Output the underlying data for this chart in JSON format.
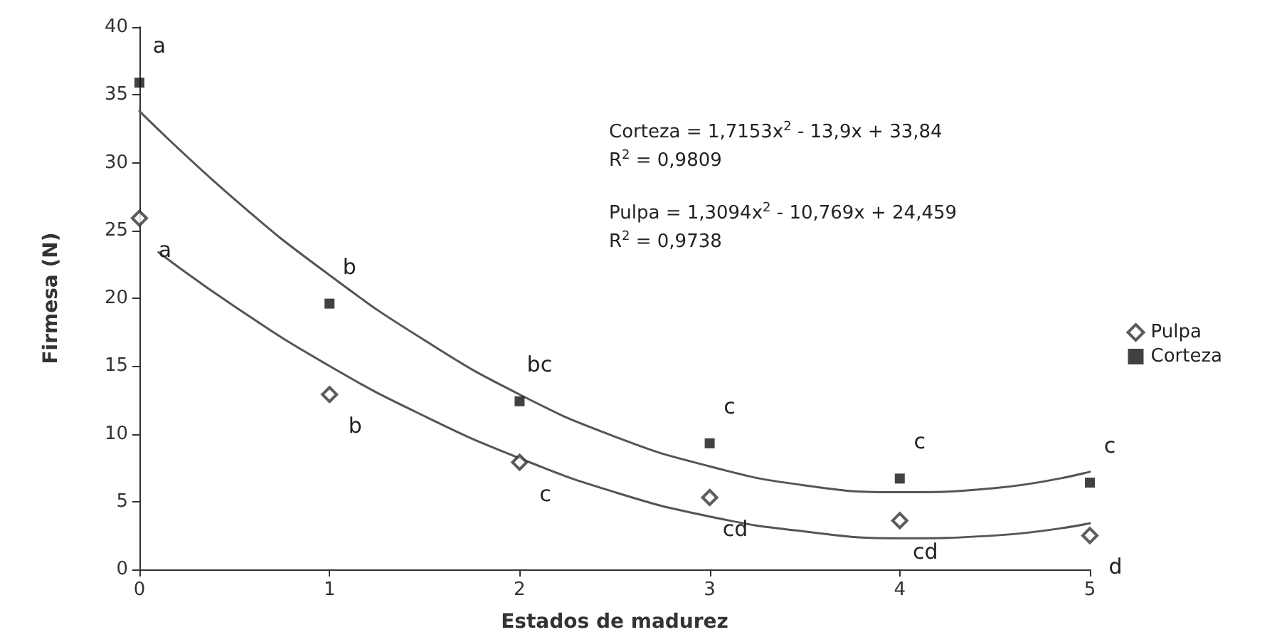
{
  "chart_data": {
    "type": "scatter",
    "xlabel": "Estados de madurez",
    "ylabel": "Firmesa (N)",
    "x": [
      0,
      1,
      2,
      3,
      4,
      5
    ],
    "series": [
      {
        "name": "Pulpa",
        "color": "#333333",
        "marker": "diamond",
        "values": [
          25.9,
          12.9,
          7.9,
          5.3,
          3.6,
          2.5
        ]
      },
      {
        "name": "Corteza",
        "color": "#111111",
        "marker": "square",
        "values": [
          35.9,
          19.6,
          12.4,
          9.3,
          6.7,
          6.4
        ]
      },
      {
        "type": "line",
        "color": "#555555",
        "marker": "none",
        "x": [
          0,
          0.5,
          1,
          1.5,
          2,
          2.5,
          3,
          3.5,
          4,
          4.5,
          5
        ],
        "values": [
          33.8,
          27.3,
          21.7,
          16.9,
          12.9,
          9.8,
          7.6,
          6.2,
          5.7,
          6.0,
          7.2
        ]
      },
      {
        "type": "line",
        "color": "#555555",
        "marker": "none",
        "x": [
          0.1,
          0.5,
          1,
          1.5,
          2,
          2.5,
          3,
          3.5,
          4,
          4.5,
          5
        ],
        "values": [
          23.4,
          19.4,
          15.0,
          11.3,
          8.2,
          5.7,
          3.9,
          2.8,
          2.3,
          2.5,
          3.4
        ]
      }
    ],
    "xlim": [
      0,
      5
    ],
    "xticks": [
      0,
      1,
      2,
      3,
      4,
      5
    ],
    "ylim": [
      0,
      40
    ],
    "yticks": [
      0,
      5,
      10,
      15,
      20,
      25,
      30,
      35,
      40
    ],
    "grid": false,
    "legend": "right",
    "line_style": "solid",
    "annotations": [
      "Corteza = 1,7153x$^{2}$ - 13,9x + 33,84",
      "R$^{2}$ = 0,9809",
      "Pulpa = 1,3094x$^{2}$ - 10,769x + 24,459",
      "R$^{2}$ = 0,9738",
      {
        "text": "a",
        "x": 0,
        "y": 35.9
      },
      {
        "text": "b",
        "x": 1,
        "y": 19.6
      },
      {
        "text": "bc",
        "x": 2,
        "y": 12.4
      },
      {
        "text": "c",
        "x": 3,
        "y": 9.3
      },
      {
        "text": "c",
        "x": 4,
        "y": 6.7
      },
      {
        "text": "c",
        "x": 5,
        "y": 6.4
      },
      {
        "text": "a",
        "x": 0,
        "y": 25.9
      },
      {
        "text": "b",
        "x": 1,
        "y": 12.9
      },
      {
        "text": "c",
        "x": 2,
        "y": 7.9
      },
      {
        "text": "cd",
        "x": 3,
        "y": 5.3
      },
      {
        "text": "cd",
        "x": 4,
        "y": 3.6
      },
      {
        "text": "d",
        "x": 5,
        "y": 2.5
      }
    ]
  }
}
